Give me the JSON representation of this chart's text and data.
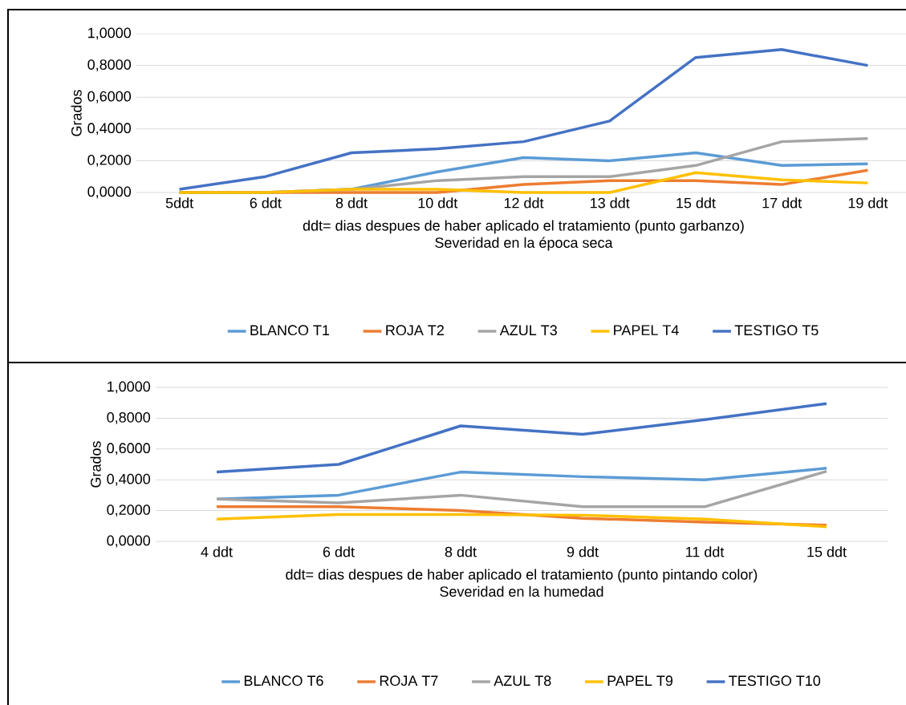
{
  "chart_data": [
    {
      "type": "line",
      "ylabel": "Grados",
      "xlabel": "ddt= dias despues de haber aplicado el tratamiento (punto garbanzo)",
      "title": "Severidad en la época seca",
      "categories": [
        "5ddt",
        "6 ddt",
        "8 ddt",
        "10 ddt",
        "12 ddt",
        "13 ddt",
        "15 ddt",
        "17 ddt",
        "19 ddt"
      ],
      "ylim": [
        0,
        1
      ],
      "yticks": [
        {
          "value": 0,
          "label": "0,0000"
        },
        {
          "value": 0.2,
          "label": "0,2000"
        },
        {
          "value": 0.4,
          "label": "0,4000"
        },
        {
          "value": 0.6,
          "label": "0,6000"
        },
        {
          "value": 0.8,
          "label": "0,8000"
        },
        {
          "value": 1,
          "label": "1,0000"
        }
      ],
      "grid": "y",
      "legend": "bottom",
      "marker": "none",
      "line_style": "solid",
      "series": [
        {
          "name": "BLANCO T1",
          "color": "#5b9bd5",
          "values": [
            0,
            0,
            0.02,
            0.13,
            0.22,
            0.2,
            0.25,
            0.17,
            0.18
          ]
        },
        {
          "name": "ROJA T2",
          "color": "#ed7d31",
          "values": [
            0,
            0,
            0,
            0,
            0.05,
            0.075,
            0.075,
            0.05,
            0.14
          ]
        },
        {
          "name": "AZUL T3",
          "color": "#a5a5a5",
          "values": [
            0,
            0,
            0.02,
            0.075,
            0.1,
            0.1,
            0.17,
            0.32,
            0.34
          ]
        },
        {
          "name": "PAPEL T4",
          "color": "#ffc000",
          "values": [
            0,
            0,
            0.02,
            0.02,
            0,
            0,
            0.125,
            0.08,
            0.06
          ]
        },
        {
          "name": "TESTIGO T5",
          "color": "#4472c4",
          "values": [
            0.02,
            0.1,
            0.25,
            0.275,
            0.32,
            0.45,
            0.85,
            0.9,
            0.8
          ]
        }
      ]
    },
    {
      "type": "line",
      "ylabel": "Grados",
      "xlabel": "ddt= dias despues de haber aplicado el tratamiento (punto pintando color)",
      "title": "Severidad  en la humedad",
      "categories": [
        "4 ddt",
        "6 ddt",
        "8 ddt",
        "9 ddt",
        "11 ddt",
        "15 ddt"
      ],
      "ylim": [
        0,
        1
      ],
      "yticks": [
        {
          "value": 0,
          "label": "0,0000"
        },
        {
          "value": 0.2,
          "label": "0,2000"
        },
        {
          "value": 0.4,
          "label": "0,4000"
        },
        {
          "value": 0.6,
          "label": "0,6000"
        },
        {
          "value": 0.8,
          "label": "0,8000"
        },
        {
          "value": 1,
          "label": "1,0000"
        }
      ],
      "grid": "y",
      "legend": "bottom",
      "marker": "none",
      "line_style": "solid",
      "series": [
        {
          "name": "BLANCO T6",
          "color": "#5b9bd5",
          "values": [
            0.275,
            0.3,
            0.45,
            0.42,
            0.4,
            0.475
          ]
        },
        {
          "name": "ROJA T7",
          "color": "#ed7d31",
          "values": [
            0.225,
            0.225,
            0.2,
            0.15,
            0.125,
            0.105
          ]
        },
        {
          "name": "AZUL T8",
          "color": "#a5a5a5",
          "values": [
            0.275,
            0.25,
            0.3,
            0.225,
            0.225,
            0.455
          ]
        },
        {
          "name": "PAPEL T9",
          "color": "#ffc000",
          "values": [
            0.145,
            0.175,
            0.175,
            0.17,
            0.145,
            0.095
          ]
        },
        {
          "name": "TESTIGO T10",
          "color": "#4472c4",
          "values": [
            0.45,
            0.5,
            0.75,
            0.695,
            0.79,
            0.895
          ]
        }
      ]
    }
  ]
}
